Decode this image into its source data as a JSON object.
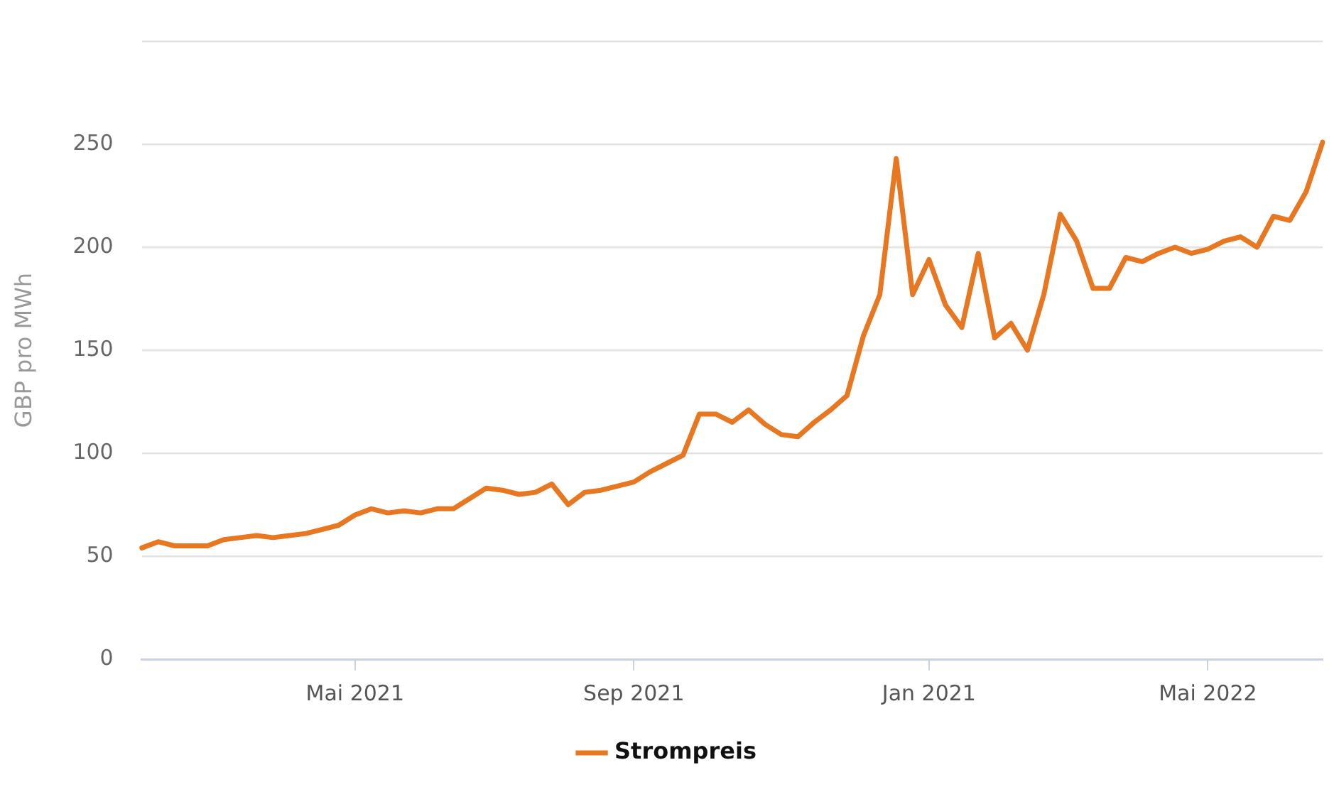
{
  "chart_data": {
    "type": "line",
    "ylabel": "GBP pro MWh",
    "categories": [
      null,
      null,
      null,
      null,
      null,
      null,
      null,
      null,
      null,
      null,
      null,
      null,
      null,
      "Mai 2021",
      null,
      null,
      null,
      null,
      null,
      null,
      null,
      null,
      null,
      null,
      null,
      null,
      null,
      null,
      null,
      null,
      "Sep 2021",
      null,
      null,
      null,
      null,
      null,
      null,
      null,
      null,
      null,
      null,
      null,
      null,
      null,
      null,
      null,
      null,
      null,
      "Jan 2021",
      null,
      null,
      null,
      null,
      null,
      null,
      null,
      null,
      null,
      null,
      null,
      null,
      null,
      null,
      null,
      null,
      "Mai 2022",
      null,
      null,
      null,
      null,
      null,
      null,
      null
    ],
    "series": [
      {
        "name": "Strompreis",
        "color": "#e87722",
        "values": [
          54,
          57,
          55,
          55,
          55,
          58,
          59,
          60,
          59,
          60,
          61,
          63,
          65,
          70,
          73,
          71,
          72,
          71,
          73,
          73,
          78,
          83,
          82,
          80,
          81,
          85,
          75,
          81,
          82,
          84,
          86,
          91,
          95,
          99,
          119,
          119,
          115,
          121,
          114,
          109,
          108,
          115,
          121,
          128,
          157,
          177,
          243,
          177,
          194,
          172,
          161,
          197,
          156,
          163,
          150,
          177,
          216,
          203,
          180,
          180,
          195,
          193,
          197,
          200,
          197,
          199,
          203,
          205,
          200,
          215,
          213,
          227,
          251
        ]
      }
    ],
    "ylim": [
      0,
      300
    ],
    "yticks": [
      0,
      50,
      100,
      150,
      200,
      250,
      {
        "value": 300,
        "label": null
      }
    ],
    "grid": "y",
    "legend": "bottom",
    "marker": "none",
    "line_style": "solid"
  }
}
